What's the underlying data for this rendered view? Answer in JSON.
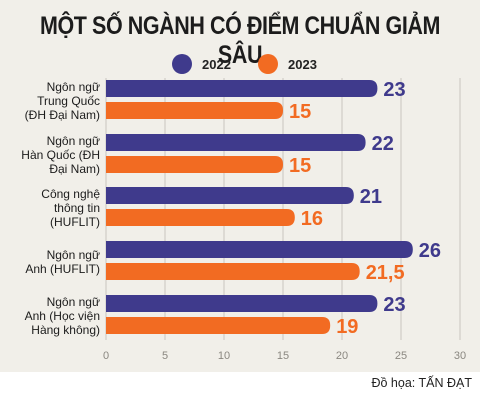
{
  "title": "MỘT SỐ NGÀNH CÓ ĐIỂM CHUẨN GIẢM SÂU",
  "credit": "Đồ họa: TẤN ĐẠT",
  "colors": {
    "s2022": "#3f3a8c",
    "s2023": "#f26b22",
    "panel": "#f1efe9"
  },
  "chart_data": {
    "type": "bar",
    "orientation": "horizontal",
    "categories": [
      "Ngôn ngữ Trung Quốc (ĐH Đại Nam)",
      "Ngôn ngữ Hàn Quốc (ĐH Đại Nam)",
      "Công nghệ thông tin (HUFLIT)",
      "Ngôn ngữ Anh (HUFLIT)",
      "Ngôn ngữ Anh (Học viện Hàng không)"
    ],
    "category_lines": [
      [
        "Ngôn ngữ",
        "Trung Quốc",
        "(ĐH Đại Nam)"
      ],
      [
        "Ngôn ngữ",
        "Hàn Quốc (ĐH",
        "Đại Nam)"
      ],
      [
        "Công nghệ",
        "thông tin",
        "(HUFLIT)"
      ],
      [
        "Ngôn ngữ",
        "Anh (HUFLIT)"
      ],
      [
        "Ngôn ngữ",
        "Anh (Học viện",
        "Hàng không)"
      ]
    ],
    "series": [
      {
        "name": "2022",
        "values": [
          23,
          22,
          21,
          26,
          23
        ],
        "labels": [
          "23",
          "22",
          "21",
          "26",
          "23"
        ]
      },
      {
        "name": "2023",
        "values": [
          15,
          15,
          16,
          21.5,
          19
        ],
        "labels": [
          "15",
          "15",
          "16",
          "21,5",
          "19"
        ]
      }
    ],
    "xlim": [
      0,
      30
    ],
    "xticks": [
      0,
      5,
      10,
      15,
      20,
      25,
      30
    ],
    "legend_position": "top",
    "title": "MỘT SỐ NGÀNH CÓ ĐIỂM CHUẨN GIẢM SÂU"
  }
}
